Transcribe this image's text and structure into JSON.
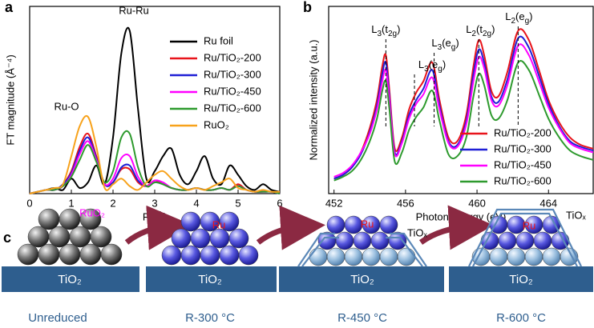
{
  "chart_data": [
    {
      "type": "line",
      "panel_label": "a",
      "x_label": "R (Å)",
      "y_label": "FT magnitude (Å⁻⁴)",
      "xlim": [
        0,
        6
      ],
      "xticks": [
        0,
        1,
        2,
        3,
        4,
        5,
        6
      ],
      "ylim": [
        0,
        1
      ],
      "legend": "upper right",
      "annotations": [
        "Ru-Ru",
        "Ru-O"
      ],
      "x": [
        0,
        0.2,
        0.4,
        0.6,
        0.8,
        1.0,
        1.2,
        1.4,
        1.6,
        1.8,
        2.0,
        2.2,
        2.4,
        2.6,
        2.8,
        3.0,
        3.2,
        3.4,
        3.6,
        3.8,
        4.0,
        4.2,
        4.4,
        4.6,
        4.8,
        5.0,
        5.2,
        5.4,
        5.6,
        5.8,
        6.0
      ],
      "series": [
        {
          "name": "Ru foil",
          "color": "#000000",
          "values": [
            0,
            0.01,
            0.02,
            0.03,
            0.02,
            0.08,
            0.03,
            0.06,
            0.15,
            0.05,
            0.3,
            0.75,
            0.87,
            0.45,
            0.08,
            0.12,
            0.2,
            0.24,
            0.1,
            0.05,
            0.12,
            0.2,
            0.08,
            0.05,
            0.15,
            0.1,
            0.04,
            0.02,
            0.05,
            0.02,
            0.01
          ]
        },
        {
          "name": "Ru/TiO₂-200",
          "color": "#e8141b",
          "values": [
            0,
            0.01,
            0.02,
            0.02,
            0.05,
            0.12,
            0.25,
            0.32,
            0.2,
            0.05,
            0.06,
            0.13,
            0.13,
            0.06,
            0.04,
            0.07,
            0.05,
            0.03,
            0.02,
            0.02,
            0.03,
            0.02,
            0.02,
            0.03,
            0.02,
            0.05,
            0.02,
            0.01,
            0.01,
            0.01,
            0
          ]
        },
        {
          "name": "Ru/TiO₂-300",
          "color": "#1f1fd6",
          "values": [
            0,
            0.01,
            0.02,
            0.02,
            0.05,
            0.11,
            0.23,
            0.3,
            0.19,
            0.05,
            0.06,
            0.14,
            0.15,
            0.07,
            0.04,
            0.06,
            0.05,
            0.03,
            0.02,
            0.02,
            0.03,
            0.02,
            0.02,
            0.03,
            0.02,
            0.04,
            0.02,
            0.01,
            0.01,
            0.01,
            0
          ]
        },
        {
          "name": "Ru/TiO₂-450",
          "color": "#ff00ff",
          "values": [
            0,
            0.01,
            0.02,
            0.02,
            0.04,
            0.1,
            0.21,
            0.28,
            0.18,
            0.05,
            0.08,
            0.19,
            0.2,
            0.09,
            0.04,
            0.07,
            0.06,
            0.03,
            0.02,
            0.02,
            0.03,
            0.02,
            0.02,
            0.03,
            0.02,
            0.04,
            0.02,
            0.01,
            0.01,
            0.01,
            0
          ]
        },
        {
          "name": "Ru/TiO₂-600",
          "color": "#2e9a2e",
          "values": [
            0,
            0.01,
            0.02,
            0.02,
            0.04,
            0.09,
            0.18,
            0.26,
            0.17,
            0.06,
            0.12,
            0.3,
            0.32,
            0.14,
            0.04,
            0.06,
            0.05,
            0.03,
            0.02,
            0.02,
            0.03,
            0.02,
            0.02,
            0.03,
            0.02,
            0.04,
            0.02,
            0.01,
            0.01,
            0.01,
            0
          ]
        },
        {
          "name": "RuO₂",
          "color": "#f7a21b",
          "values": [
            0,
            0.01,
            0.02,
            0.03,
            0.05,
            0.2,
            0.36,
            0.41,
            0.25,
            0.03,
            0.05,
            0.08,
            0.04,
            0.02,
            0.06,
            0.1,
            0.12,
            0.08,
            0.04,
            0.02,
            0.03,
            0.02,
            0.04,
            0.06,
            0.08,
            0.03,
            0.02,
            0.01,
            0.02,
            0.01,
            0.01
          ]
        }
      ]
    },
    {
      "type": "line",
      "panel_label": "b",
      "x_label": "Photon energy (eV)",
      "y_label": "Normalized intensity (a.u.)",
      "xlim": [
        451.7,
        466.5
      ],
      "xticks": [
        452,
        456,
        460,
        464
      ],
      "ylim": [
        0,
        1
      ],
      "legend": "lower right",
      "peak_labels": [
        {
          "x": 454.9,
          "parts": [
            "L",
            "3",
            "(t",
            "2g",
            ")"
          ]
        },
        {
          "x": 456.5,
          "parts": [
            "L",
            "3",
            "(e",
            "g",
            ")"
          ]
        },
        {
          "x": 457.6,
          "parts": [
            "L",
            "3",
            "(e",
            "g",
            ")"
          ]
        },
        {
          "x": 460.1,
          "parts": [
            "L",
            "2",
            "(t",
            "2g",
            ")"
          ]
        },
        {
          "x": 462.3,
          "parts": [
            "L",
            "2",
            "(e",
            "g",
            ")"
          ]
        }
      ],
      "x": [
        452,
        452.5,
        453,
        453.5,
        454,
        454.4,
        454.7,
        454.9,
        455.1,
        455.4,
        455.8,
        456.2,
        456.6,
        457,
        457.5,
        457.9,
        458.4,
        458.9,
        459.4,
        459.8,
        460.1,
        460.4,
        460.8,
        461.2,
        461.7,
        462.3,
        462.9,
        463.5,
        464,
        464.6,
        465.2,
        465.8,
        466.5
      ],
      "series": [
        {
          "name": "Ru/TiO₂-200",
          "color": "#e8141b",
          "values": [
            0.08,
            0.1,
            0.14,
            0.22,
            0.35,
            0.5,
            0.68,
            0.74,
            0.55,
            0.24,
            0.3,
            0.45,
            0.54,
            0.6,
            0.7,
            0.5,
            0.3,
            0.28,
            0.42,
            0.68,
            0.82,
            0.74,
            0.55,
            0.52,
            0.65,
            0.87,
            0.82,
            0.65,
            0.5,
            0.38,
            0.3,
            0.26,
            0.24
          ]
        },
        {
          "name": "Ru/TiO₂-300",
          "color": "#1f1fd6",
          "values": [
            0.08,
            0.1,
            0.14,
            0.21,
            0.33,
            0.47,
            0.64,
            0.7,
            0.52,
            0.22,
            0.28,
            0.42,
            0.5,
            0.56,
            0.66,
            0.47,
            0.28,
            0.26,
            0.39,
            0.64,
            0.77,
            0.7,
            0.52,
            0.49,
            0.61,
            0.83,
            0.78,
            0.62,
            0.48,
            0.36,
            0.28,
            0.25,
            0.23
          ]
        },
        {
          "name": "Ru/TiO₂-450",
          "color": "#ff00ff",
          "values": [
            0.09,
            0.11,
            0.15,
            0.22,
            0.32,
            0.45,
            0.6,
            0.66,
            0.5,
            0.21,
            0.27,
            0.4,
            0.48,
            0.53,
            0.62,
            0.45,
            0.27,
            0.25,
            0.37,
            0.6,
            0.73,
            0.67,
            0.5,
            0.47,
            0.58,
            0.79,
            0.74,
            0.59,
            0.46,
            0.35,
            0.27,
            0.24,
            0.22
          ]
        },
        {
          "name": "Ru/TiO₂-600",
          "color": "#2e9a2e",
          "values": [
            0.07,
            0.09,
            0.12,
            0.18,
            0.28,
            0.4,
            0.55,
            0.6,
            0.45,
            0.17,
            0.22,
            0.34,
            0.41,
            0.46,
            0.55,
            0.39,
            0.21,
            0.2,
            0.3,
            0.52,
            0.64,
            0.58,
            0.42,
            0.4,
            0.5,
            0.7,
            0.66,
            0.52,
            0.4,
            0.3,
            0.23,
            0.2,
            0.18
          ]
        }
      ]
    }
  ],
  "diagram": {
    "panel_label": "c",
    "stages": [
      {
        "support": "TiO₂",
        "particle": "RuO₂",
        "caption": "Unreduced"
      },
      {
        "support": "TiO₂",
        "particle": "Ru",
        "caption": "R-300 °C"
      },
      {
        "support": "TiO₂",
        "particle": "Ru",
        "overlayer": "TiOₓ",
        "caption": "R-450 °C"
      },
      {
        "support": "TiO₂",
        "particle": "Ru",
        "overlayer": "TiOₓ",
        "caption": "R-600 °C"
      }
    ]
  }
}
